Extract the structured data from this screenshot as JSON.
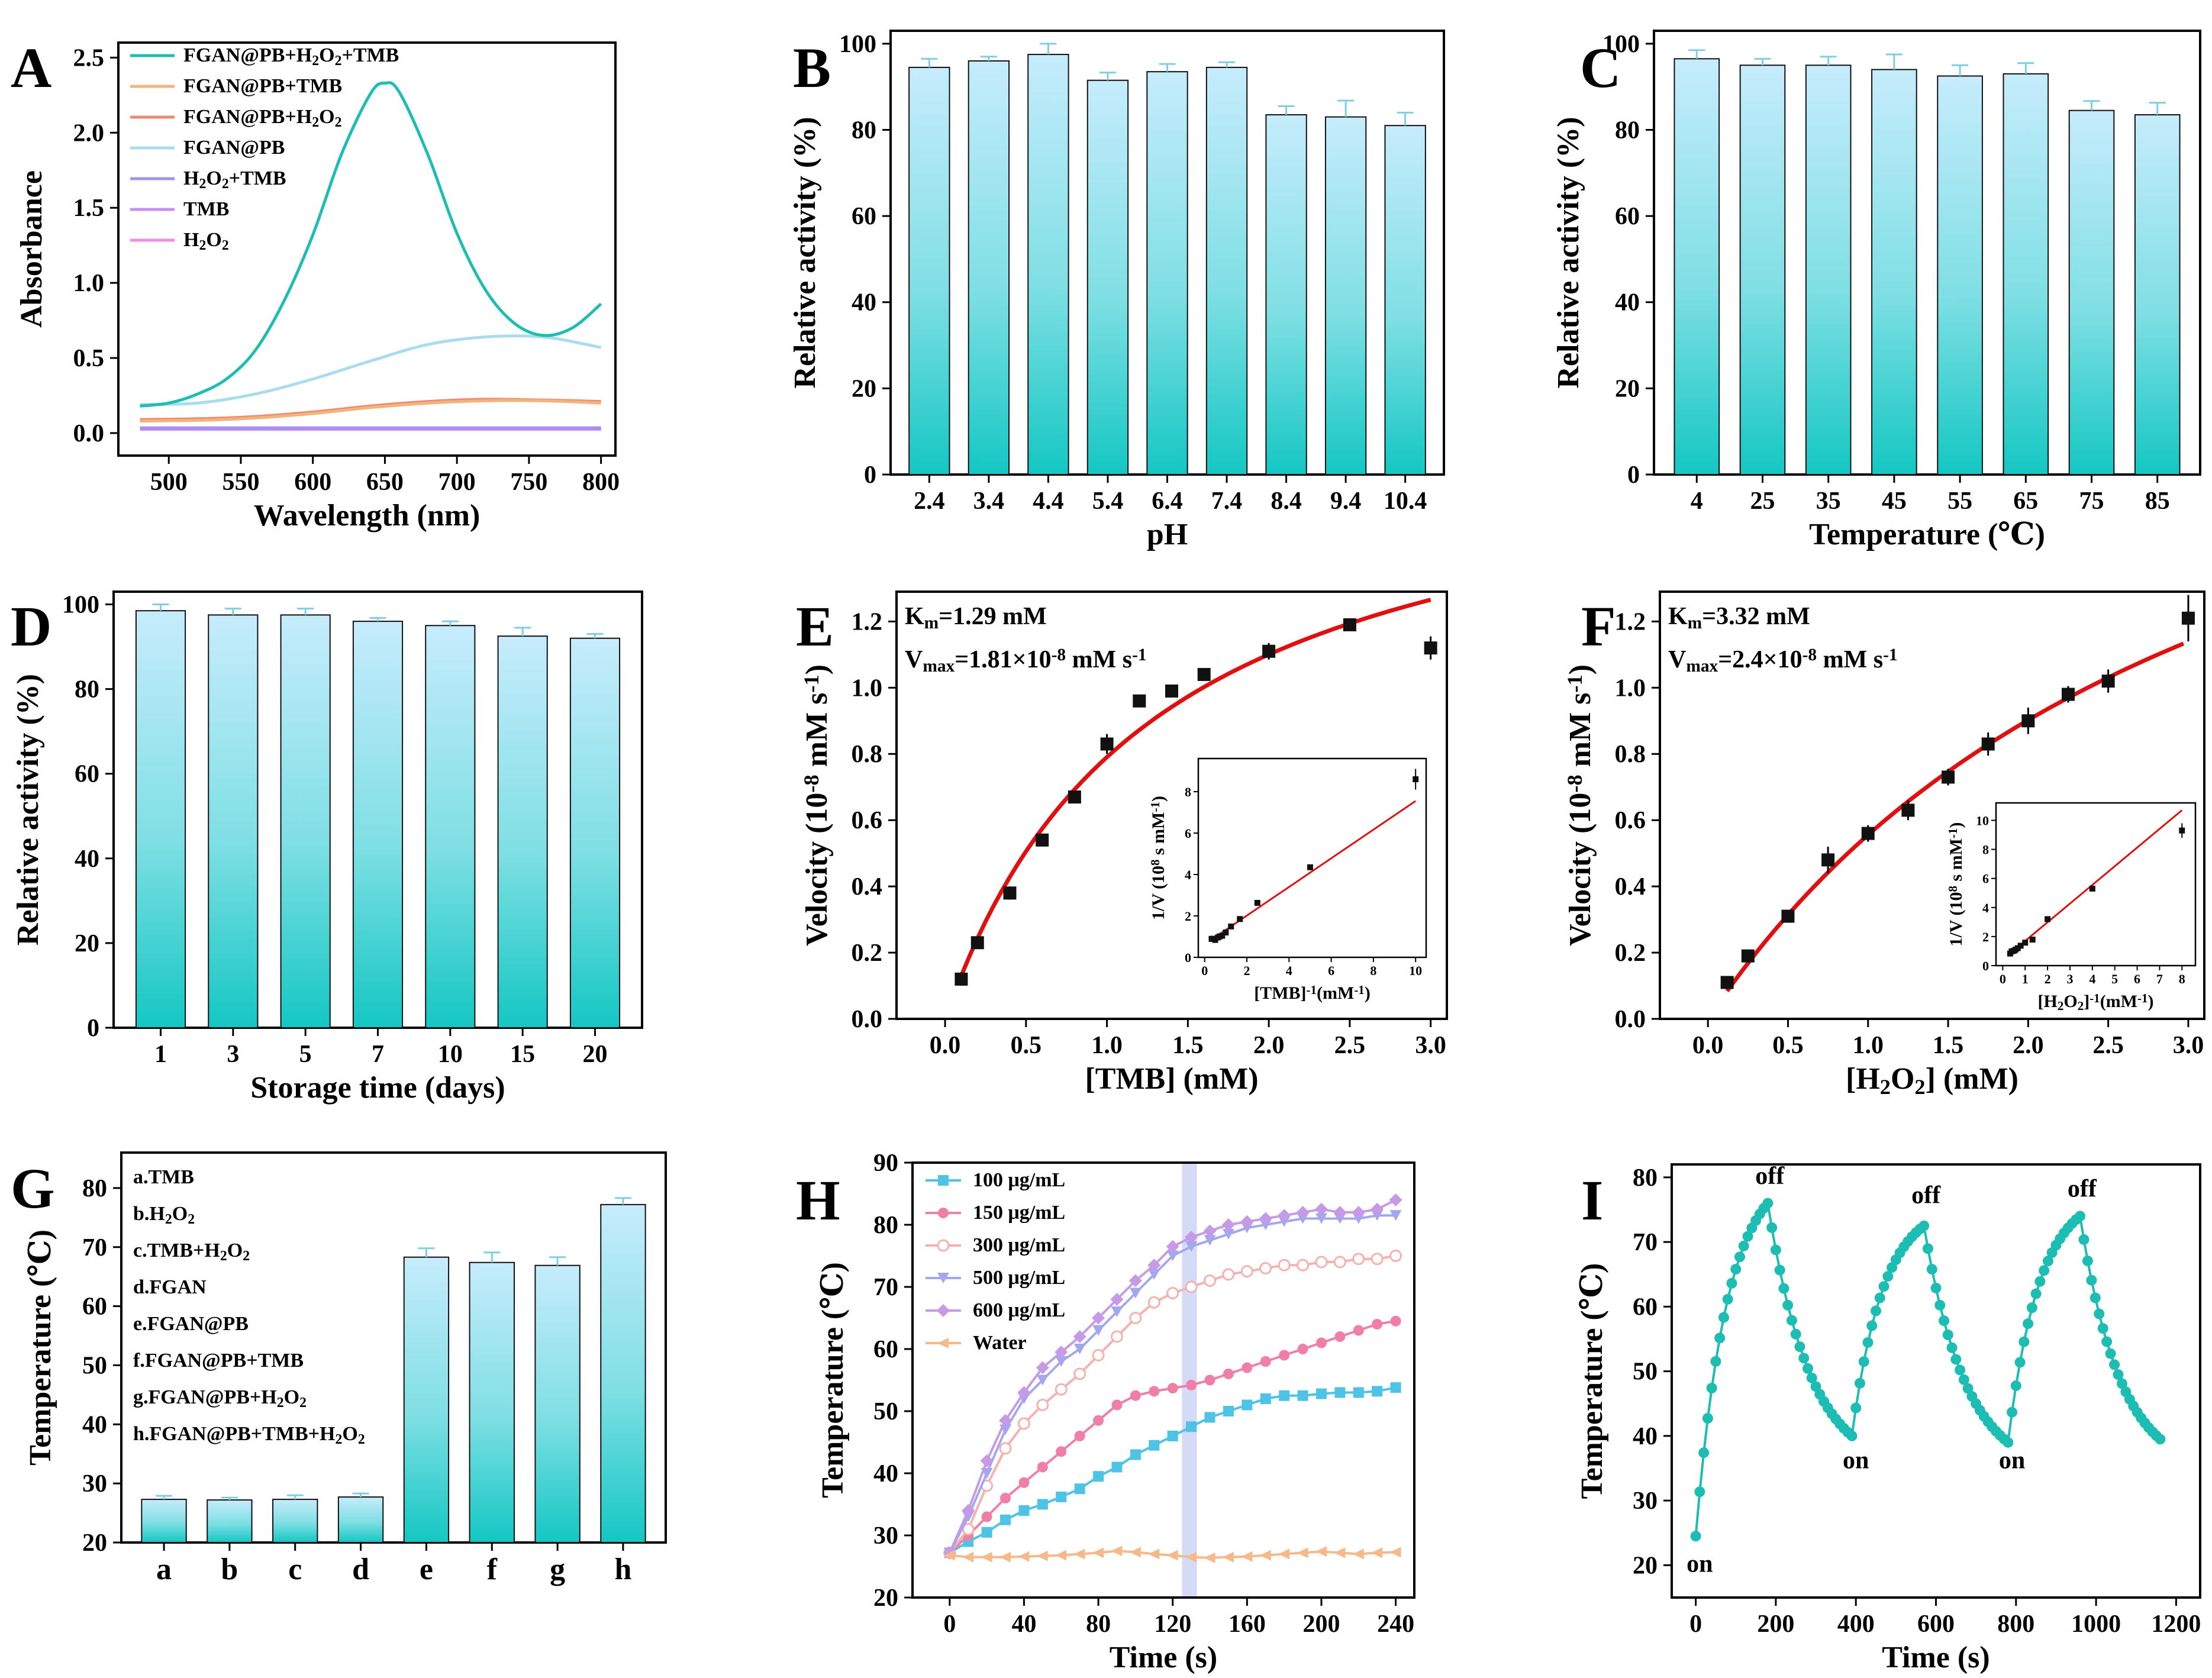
{
  "figure": {
    "bar_colors": {
      "top": "#bfe9fb",
      "bottom": "#16c9c6",
      "error": "#7ecfe6"
    },
    "panels_order": [
      "A",
      "B",
      "C",
      "D",
      "E",
      "F",
      "G",
      "H",
      "I"
    ]
  },
  "chart_data": [
    {
      "panel": "A",
      "type": "line",
      "xlabel": "Wavelength (nm)",
      "ylabel": "Absorbance",
      "xlim": [
        465,
        810
      ],
      "ylim": [
        -0.15,
        2.6
      ],
      "xticks": [
        500,
        550,
        600,
        650,
        700,
        750,
        800
      ],
      "yticks": [
        0.0,
        0.5,
        1.0,
        1.5,
        2.0,
        2.5
      ],
      "legend_position": "top-left",
      "series": [
        {
          "name": "FGAN@PB+H2O2+TMB",
          "color": "#1dbdb3",
          "x": [
            480,
            500,
            520,
            540,
            560,
            580,
            600,
            620,
            640,
            650,
            660,
            680,
            700,
            720,
            740,
            760,
            780,
            800
          ],
          "y": [
            0.18,
            0.2,
            0.26,
            0.36,
            0.55,
            0.88,
            1.32,
            1.86,
            2.26,
            2.33,
            2.27,
            1.85,
            1.33,
            0.95,
            0.73,
            0.65,
            0.7,
            0.86
          ]
        },
        {
          "name": "FGAN@PB+TMB",
          "color": "#f5b37c",
          "x": [
            480,
            520,
            560,
            600,
            640,
            680,
            720,
            760,
            800
          ],
          "y": [
            0.08,
            0.085,
            0.1,
            0.13,
            0.17,
            0.2,
            0.215,
            0.215,
            0.2
          ]
        },
        {
          "name": "FGAN@PB+H2O2",
          "color": "#ef8a72",
          "x": [
            480,
            520,
            560,
            600,
            640,
            680,
            720,
            760,
            800
          ],
          "y": [
            0.09,
            0.095,
            0.11,
            0.14,
            0.18,
            0.21,
            0.225,
            0.22,
            0.21
          ]
        },
        {
          "name": "FGAN@PB",
          "color": "#a9dcee",
          "x": [
            480,
            520,
            560,
            600,
            640,
            680,
            720,
            760,
            800
          ],
          "y": [
            0.19,
            0.2,
            0.26,
            0.36,
            0.48,
            0.59,
            0.64,
            0.64,
            0.57
          ]
        },
        {
          "name": "H2O2+TMB",
          "color": "#9d94ef",
          "x": [
            480,
            800
          ],
          "y": [
            0.03,
            0.03
          ]
        },
        {
          "name": "TMB",
          "color": "#c98ef0",
          "x": [
            480,
            800
          ],
          "y": [
            0.035,
            0.035
          ]
        },
        {
          "name": "H2O2",
          "color": "#ef8be8",
          "x": [
            480,
            800
          ],
          "y": [
            0.025,
            0.025
          ]
        }
      ]
    },
    {
      "panel": "B",
      "type": "bar",
      "xlabel": "pH",
      "ylabel": "Relative activity (%)",
      "ylim": [
        0,
        103
      ],
      "yticks": [
        0,
        20,
        40,
        60,
        80,
        100
      ],
      "categories": [
        "2.4",
        "3.4",
        "4.4",
        "5.4",
        "6.4",
        "7.4",
        "8.4",
        "9.4",
        "10.4"
      ],
      "values": [
        94.5,
        96,
        97.5,
        91.5,
        93.5,
        94.5,
        83.5,
        83,
        81
      ],
      "errors": [
        2,
        1,
        2.5,
        1.8,
        1.8,
        1.2,
        2,
        3.8,
        3
      ]
    },
    {
      "panel": "C",
      "type": "bar",
      "xlabel": "Temperature (℃)",
      "ylabel": "Relative activity (%)",
      "ylim": [
        0,
        103
      ],
      "yticks": [
        0,
        20,
        40,
        60,
        80,
        100
      ],
      "categories": [
        "4",
        "25",
        "35",
        "45",
        "55",
        "65",
        "75",
        "85"
      ],
      "values": [
        96.5,
        95,
        95,
        94,
        92.5,
        93,
        84.5,
        83.5
      ],
      "errors": [
        2,
        1.5,
        2,
        3.5,
        2.5,
        2.5,
        2.2,
        2.8
      ]
    },
    {
      "panel": "D",
      "type": "bar",
      "xlabel": "Storage time (days)",
      "ylabel": "Relative activity (%)",
      "ylim": [
        0,
        103
      ],
      "yticks": [
        0,
        20,
        40,
        60,
        80,
        100
      ],
      "categories": [
        "1",
        "3",
        "5",
        "7",
        "10",
        "15",
        "20"
      ],
      "values": [
        98.5,
        97.5,
        97.5,
        96,
        95,
        92.5,
        92
      ],
      "errors": [
        1.5,
        1.5,
        1.5,
        0.8,
        1,
        2,
        1
      ]
    },
    {
      "panel": "E",
      "type": "scatter",
      "xlabel": "[TMB] (mM)",
      "ylabel": "Velocity (10⁻⁸ mM s⁻¹)",
      "xlim": [
        -0.3,
        3.1
      ],
      "ylim": [
        0,
        1.29
      ],
      "xticks": [
        0.0,
        0.5,
        1.0,
        1.5,
        2.0,
        2.5,
        3.0
      ],
      "yticks": [
        0.0,
        0.2,
        0.4,
        0.6,
        0.8,
        1.0,
        1.2
      ],
      "points": {
        "x": [
          0.1,
          0.2,
          0.4,
          0.6,
          0.8,
          1.0,
          1.2,
          1.4,
          1.6,
          2.0,
          2.5,
          3.0
        ],
        "y": [
          0.12,
          0.23,
          0.38,
          0.54,
          0.67,
          0.83,
          0.96,
          0.99,
          1.04,
          1.11,
          1.19,
          1.12
        ],
        "err": [
          0.02,
          0.015,
          0.02,
          0.015,
          0.015,
          0.03,
          0.01,
          0.015,
          0.015,
          0.025,
          0.015,
          0.035
        ]
      },
      "fit": {
        "model": "michaelis-menten",
        "Km": 1.29,
        "Vmax": 1.81,
        "color": "#e01010"
      },
      "km_label": "K",
      "km_sub": "m",
      "km_value": "=1.29 mM",
      "vmax_label": "V",
      "vmax_sub": "max",
      "vmax_value": "=1.81×10",
      "vmax_exp": "-8",
      "vmax_unit": " mM s",
      "vmax_unit_exp": "-1",
      "inset": {
        "xlabel": "[TMB]⁻¹(mM⁻¹)",
        "ylabel": "1/V (10⁸ s mM⁻¹)",
        "xlim": [
          -0.3,
          10.5
        ],
        "ylim": [
          0,
          9.6
        ],
        "xticks": [
          0,
          2,
          4,
          6,
          8,
          10
        ],
        "yticks": [
          0,
          2,
          4,
          6,
          8
        ],
        "x": [
          0.33,
          0.4,
          0.5,
          0.63,
          0.71,
          0.83,
          1.0,
          1.25,
          1.67,
          2.5,
          5,
          10
        ],
        "y": [
          0.89,
          0.9,
          0.84,
          0.96,
          1.01,
          1.04,
          1.2,
          1.49,
          1.85,
          2.63,
          4.35,
          8.6
        ],
        "line": {
          "x": [
            0.3,
            10
          ],
          "y": [
            0.84,
            7.55
          ]
        }
      }
    },
    {
      "panel": "F",
      "type": "scatter",
      "xlabel": "[H₂O₂] (mM)",
      "ylabel": "Velocity (10⁻⁸ mM s⁻¹)",
      "xlim": [
        -0.3,
        3.1
      ],
      "ylim": [
        0,
        1.29
      ],
      "xticks": [
        0.0,
        0.5,
        1.0,
        1.5,
        2.0,
        2.5,
        3.0
      ],
      "yticks": [
        0.0,
        0.2,
        0.4,
        0.6,
        0.8,
        1.0,
        1.2
      ],
      "points": {
        "x": [
          0.12,
          0.25,
          0.5,
          0.75,
          1.0,
          1.25,
          1.5,
          1.75,
          2.0,
          2.25,
          2.5,
          3.0
        ],
        "y": [
          0.11,
          0.19,
          0.31,
          0.48,
          0.56,
          0.63,
          0.73,
          0.83,
          0.9,
          0.98,
          1.02,
          1.21
        ],
        "err": [
          0.01,
          0.01,
          0.015,
          0.04,
          0.025,
          0.03,
          0.025,
          0.035,
          0.04,
          0.025,
          0.035,
          0.07
        ]
      },
      "fit": {
        "model": "michaelis-menten",
        "Km": 3.32,
        "Vmax": 2.4,
        "color": "#e01010"
      },
      "km_label": "K",
      "km_sub": "m",
      "km_value": "=3.32 mM",
      "vmax_label": "V",
      "vmax_sub": "max",
      "vmax_value": "=2.4×10",
      "vmax_exp": "-8",
      "vmax_unit": " mM s",
      "vmax_unit_exp": "-1",
      "inset": {
        "xlabel": "[H₂O₂]⁻¹(mM⁻¹)",
        "ylabel": "1/V (10⁸ s mM⁻¹)",
        "xlim": [
          -0.3,
          8.6
        ],
        "ylim": [
          0,
          11.2
        ],
        "xticks": [
          0,
          1,
          2,
          3,
          4,
          5,
          6,
          7,
          8
        ],
        "yticks": [
          0,
          2,
          4,
          6,
          8,
          10
        ],
        "x": [
          0.33,
          0.4,
          0.5,
          0.57,
          0.67,
          0.8,
          1.0,
          1.33,
          2,
          4,
          8
        ],
        "y": [
          0.83,
          0.98,
          1.02,
          1.1,
          1.2,
          1.37,
          1.58,
          1.79,
          3.2,
          5.3,
          9.3
        ],
        "line": {
          "x": [
            0.3,
            8
          ],
          "y": [
            0.8,
            10.7
          ]
        }
      }
    },
    {
      "panel": "G",
      "type": "bar",
      "xlabel": "",
      "ylabel": "Temperature (℃)",
      "ylim": [
        20,
        86
      ],
      "yticks": [
        20,
        30,
        40,
        50,
        60,
        70,
        80
      ],
      "categories": [
        "a",
        "b",
        "c",
        "d",
        "e",
        "f",
        "g",
        "h"
      ],
      "values": [
        27.3,
        27.2,
        27.3,
        27.7,
        68.3,
        67.4,
        66.9,
        77.2
      ],
      "errors": [
        0.6,
        0.4,
        0.7,
        0.6,
        1.5,
        1.7,
        1.4,
        1.1
      ],
      "legend": [
        {
          "prefix": "a.TMB",
          "sub": "",
          "suffix": ""
        },
        {
          "prefix": "b.H",
          "sub": "2",
          "suffix": "O",
          "sub2": "2"
        },
        {
          "prefix": "c.TMB+H",
          "sub": "2",
          "suffix": "O",
          "sub2": "2"
        },
        {
          "prefix": "d.FGAN",
          "sub": "",
          "suffix": ""
        },
        {
          "prefix": "e.FGAN@PB",
          "sub": "",
          "suffix": ""
        },
        {
          "prefix": "f.FGAN@PB+TMB",
          "sub": "",
          "suffix": ""
        },
        {
          "prefix": "g.FGAN@PB+H",
          "sub": "2",
          "suffix": "O",
          "sub2": "2"
        },
        {
          "prefix": "h.FGAN@PB+TMB+H",
          "sub": "2",
          "suffix": "O",
          "sub2": "2"
        }
      ]
    },
    {
      "panel": "H",
      "type": "line",
      "xlabel": "Time (s)",
      "ylabel": "Temperature (℃)",
      "xlim": [
        -20,
        250
      ],
      "ylim": [
        20,
        90
      ],
      "xticks": [
        0,
        40,
        80,
        120,
        160,
        200,
        240
      ],
      "yticks": [
        20,
        30,
        40,
        50,
        60,
        70,
        80,
        90
      ],
      "laser_off_band": [
        125,
        133
      ],
      "series": [
        {
          "name": "100 μg/mL",
          "color": "#4fc3e6",
          "marker": "square",
          "y": [
            27.2,
            29,
            30.5,
            32.5,
            34,
            35,
            36.2,
            37.5,
            39.5,
            41,
            43,
            44.5,
            46,
            47.5,
            49,
            50,
            51,
            52,
            52.5,
            52.5,
            52.8,
            53,
            53,
            53.2,
            53.8
          ]
        },
        {
          "name": "150 μg/mL",
          "color": "#f07fa8",
          "marker": "circle",
          "y": [
            27.2,
            30,
            33,
            36,
            38.5,
            41,
            43.5,
            46,
            48.5,
            51,
            52.5,
            53.2,
            53.7,
            54.2,
            55,
            56,
            57,
            58,
            59,
            60,
            61,
            62,
            63,
            64,
            64.5
          ]
        },
        {
          "name": "300 μg/mL",
          "color": "#f6b1ae",
          "marker": "hollow-circle",
          "y": [
            27.2,
            31,
            38,
            44,
            48,
            51,
            53.5,
            56,
            59,
            62,
            65,
            67.5,
            69,
            70,
            71,
            72,
            72.5,
            73,
            73.5,
            73.5,
            74,
            74,
            74.5,
            74.5,
            75
          ]
        },
        {
          "name": "500 μg/mL",
          "color": "#a3a8ee",
          "marker": "triangle-down",
          "y": [
            27.2,
            33,
            40,
            47,
            52,
            55,
            58,
            60,
            63,
            66,
            69,
            72,
            75,
            76.5,
            77.5,
            78.5,
            79.5,
            80,
            80.5,
            81,
            81,
            81,
            81,
            81.5,
            81.5
          ]
        },
        {
          "name": "600 μg/mL",
          "color": "#c79ae8",
          "marker": "diamond",
          "y": [
            27.2,
            34,
            42,
            48.5,
            53,
            57,
            59.5,
            62,
            65,
            68,
            71,
            73.5,
            76.5,
            78,
            79,
            80,
            80.5,
            81,
            81.5,
            82,
            82.5,
            82,
            82,
            82.5,
            84
          ]
        },
        {
          "name": "Water",
          "color": "#f6b98a",
          "marker": "triangle-left",
          "y": [
            26.8,
            26.5,
            26.5,
            26.5,
            26.6,
            26.7,
            26.8,
            27,
            27.2,
            27.5,
            27.3,
            27,
            26.8,
            26.5,
            26.4,
            26.5,
            26.6,
            26.8,
            27,
            27.2,
            27.4,
            27.2,
            27,
            27.2,
            27.3
          ]
        }
      ],
      "x": [
        0,
        10,
        20,
        30,
        40,
        50,
        60,
        70,
        80,
        90,
        100,
        110,
        120,
        130,
        140,
        150,
        160,
        170,
        180,
        190,
        200,
        210,
        220,
        230,
        240
      ]
    },
    {
      "panel": "I",
      "type": "line",
      "xlabel": "Time (s)",
      "ylabel": "Temperature (℃)",
      "xlim": [
        -60,
        1260
      ],
      "ylim": [
        15,
        82
      ],
      "xticks": [
        0,
        200,
        400,
        600,
        800,
        1000,
        1200
      ],
      "yticks": [
        20,
        30,
        40,
        50,
        60,
        70,
        80
      ],
      "color": "#1dbdb3",
      "cycles": [
        {
          "start": 0,
          "peak_t": 180,
          "low": 24.5,
          "peak": 76,
          "end_t": 390,
          "end": 40
        },
        {
          "start": 390,
          "peak_t": 570,
          "low": 40,
          "peak": 72.5,
          "end_t": 780,
          "end": 39
        },
        {
          "start": 780,
          "peak_t": 960,
          "low": 39,
          "peak": 74,
          "end_t": 1160,
          "end": 39.5
        }
      ],
      "annotations": [
        {
          "text": "on",
          "x": 10,
          "y": 19
        },
        {
          "text": "off",
          "x": 185,
          "y": 79
        },
        {
          "text": "on",
          "x": 400,
          "y": 35
        },
        {
          "text": "off",
          "x": 575,
          "y": 76
        },
        {
          "text": "on",
          "x": 790,
          "y": 35
        },
        {
          "text": "off",
          "x": 965,
          "y": 77
        }
      ]
    }
  ]
}
